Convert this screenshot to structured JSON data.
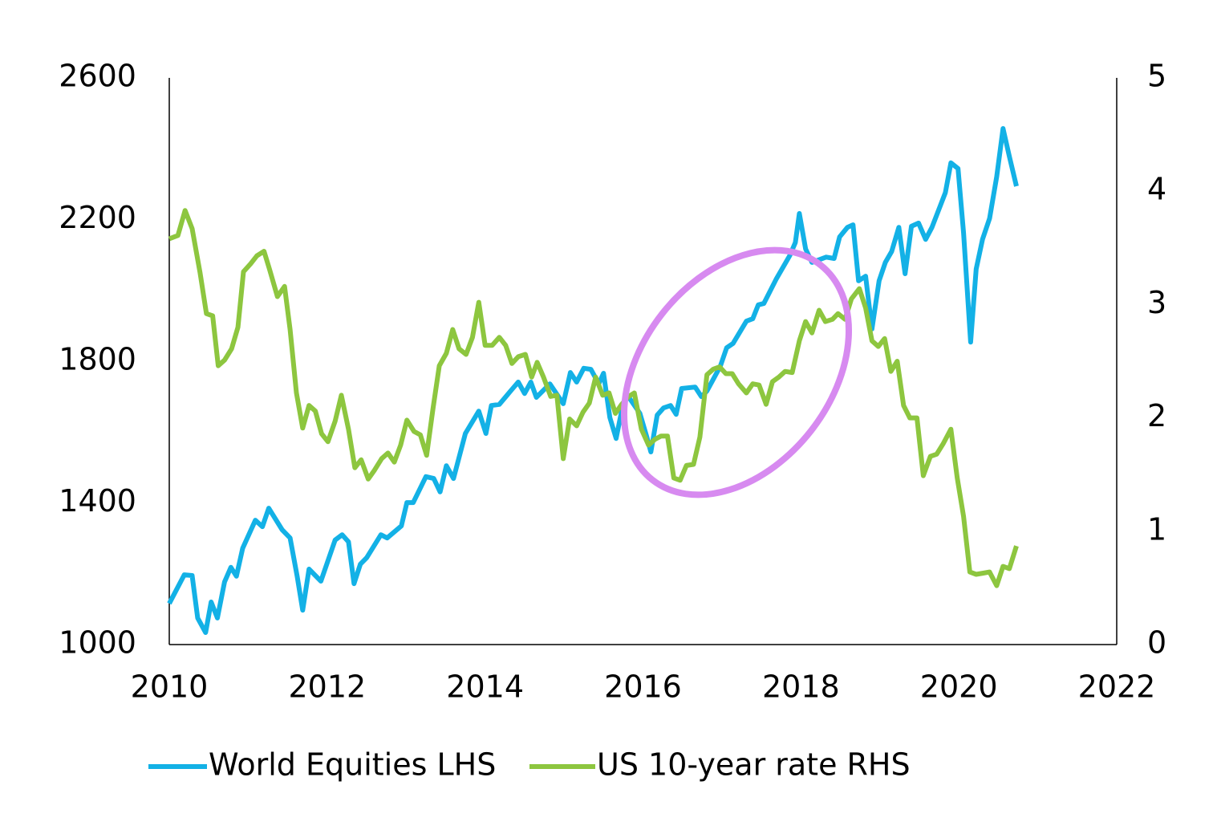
{
  "chart_data": {
    "type": "line",
    "xlim": [
      2010,
      2022
    ],
    "xticks": [
      2010,
      2012,
      2014,
      2016,
      2018,
      2020,
      2022
    ],
    "ylim": [
      1000,
      2600
    ],
    "yticks": [
      1000,
      1400,
      1800,
      2200,
      2600
    ],
    "y2lim": [
      0,
      5
    ],
    "y2ticks": [
      0,
      1,
      2,
      3,
      4,
      5
    ],
    "legend": "bottom",
    "series": [
      {
        "name": "World Equities LHS",
        "color": "#13b1e6",
        "x": [
          2010.0,
          2010.19,
          2010.29,
          2010.36,
          2010.46,
          2010.53,
          2010.61,
          2010.7,
          2010.78,
          2010.85,
          2010.93,
          2011.09,
          2011.18,
          2011.26,
          2011.43,
          2011.53,
          2011.62,
          2011.69,
          2011.77,
          2011.92,
          2012.1,
          2012.19,
          2012.27,
          2012.34,
          2012.42,
          2012.5,
          2012.68,
          2012.76,
          2012.94,
          2013.01,
          2013.09,
          2013.25,
          2013.35,
          2013.43,
          2013.51,
          2013.6,
          2013.75,
          2013.92,
          2014.01,
          2014.08,
          2014.18,
          2014.35,
          2014.42,
          2014.5,
          2014.58,
          2014.65,
          2014.82,
          2014.99,
          2015.08,
          2015.16,
          2015.25,
          2015.34,
          2015.44,
          2015.5,
          2015.58,
          2015.66,
          2015.74,
          2015.8,
          2015.96,
          2016.05,
          2016.1,
          2016.18,
          2016.26,
          2016.35,
          2016.42,
          2016.49,
          2016.66,
          2016.74,
          2016.81,
          2016.98,
          2017.06,
          2017.14,
          2017.31,
          2017.39,
          2017.46,
          2017.53,
          2017.69,
          2017.86,
          2017.93,
          2017.98,
          2018.06,
          2018.14,
          2018.32,
          2018.42,
          2018.49,
          2018.59,
          2018.66,
          2018.73,
          2018.82,
          2018.9,
          2018.99,
          2019.07,
          2019.15,
          2019.24,
          2019.32,
          2019.4,
          2019.49,
          2019.58,
          2019.66,
          2019.83,
          2019.9,
          2019.99,
          2020.06,
          2020.15,
          2020.22,
          2020.3,
          2020.39,
          2020.48,
          2020.56,
          2020.64,
          2020.73
        ],
        "values": [
          1116,
          1197,
          1195,
          1075,
          1034,
          1120,
          1075,
          1177,
          1218,
          1193,
          1272,
          1351,
          1333,
          1385,
          1324,
          1301,
          1193,
          1097,
          1213,
          1179,
          1295,
          1310,
          1290,
          1172,
          1227,
          1245,
          1310,
          1301,
          1335,
          1401,
          1401,
          1474,
          1469,
          1431,
          1505,
          1469,
          1596,
          1659,
          1596,
          1675,
          1678,
          1723,
          1741,
          1709,
          1741,
          1698,
          1736,
          1680,
          1768,
          1741,
          1780,
          1777,
          1736,
          1766,
          1641,
          1582,
          1671,
          1705,
          1653,
          1585,
          1544,
          1648,
          1668,
          1675,
          1650,
          1723,
          1727,
          1700,
          1716,
          1786,
          1838,
          1850,
          1913,
          1920,
          1959,
          1963,
          2033,
          2099,
          2135,
          2217,
          2117,
          2079,
          2094,
          2090,
          2151,
          2178,
          2185,
          2027,
          2040,
          1891,
          2027,
          2079,
          2110,
          2178,
          2047,
          2181,
          2190,
          2144,
          2178,
          2276,
          2360,
          2344,
          2162,
          1854,
          2060,
          2144,
          2203,
          2321,
          2457,
          2378,
          2294
        ]
      },
      {
        "name": "US 10-year rate RHS",
        "color": "#8dc63f",
        "axis": "y2",
        "x": [
          2010.0,
          2010.11,
          2010.2,
          2010.29,
          2010.39,
          2010.47,
          2010.55,
          2010.62,
          2010.7,
          2010.79,
          2010.87,
          2010.94,
          2011.03,
          2011.11,
          2011.2,
          2011.27,
          2011.37,
          2011.46,
          2011.53,
          2011.61,
          2011.69,
          2011.77,
          2011.85,
          2011.93,
          2012.01,
          2012.1,
          2012.18,
          2012.27,
          2012.35,
          2012.43,
          2012.52,
          2012.6,
          2012.69,
          2012.77,
          2012.85,
          2012.93,
          2013.01,
          2013.1,
          2013.18,
          2013.26,
          2013.34,
          2013.42,
          2013.51,
          2013.59,
          2013.67,
          2013.76,
          2013.84,
          2013.92,
          2014.0,
          2014.09,
          2014.18,
          2014.26,
          2014.34,
          2014.42,
          2014.51,
          2014.59,
          2014.66,
          2014.74,
          2014.83,
          2014.91,
          2014.99,
          2015.07,
          2015.16,
          2015.24,
          2015.32,
          2015.4,
          2015.49,
          2015.57,
          2015.65,
          2015.73,
          2015.82,
          2015.89,
          2015.98,
          2016.07,
          2016.15,
          2016.23,
          2016.31,
          2016.39,
          2016.47,
          2016.55,
          2016.64,
          2016.72,
          2016.81,
          2016.89,
          2016.97,
          2017.05,
          2017.13,
          2017.21,
          2017.31,
          2017.39,
          2017.47,
          2017.56,
          2017.64,
          2017.72,
          2017.8,
          2017.89,
          2017.98,
          2018.06,
          2018.14,
          2018.23,
          2018.31,
          2018.4,
          2018.47,
          2018.56,
          2018.64,
          2018.74,
          2018.82,
          2018.9,
          2018.98,
          2019.06,
          2019.14,
          2019.22,
          2019.3,
          2019.38,
          2019.47,
          2019.55,
          2019.64,
          2019.72,
          2019.8,
          2019.9,
          2019.98,
          2020.06,
          2020.14,
          2020.22,
          2020.31,
          2020.39,
          2020.48,
          2020.56,
          2020.64,
          2020.73
        ],
        "values": [
          3.58,
          3.61,
          3.83,
          3.67,
          3.28,
          2.92,
          2.9,
          2.46,
          2.51,
          2.61,
          2.8,
          3.29,
          3.36,
          3.43,
          3.47,
          3.31,
          3.07,
          3.16,
          2.78,
          2.22,
          1.91,
          2.11,
          2.06,
          1.86,
          1.79,
          1.97,
          2.2,
          1.9,
          1.56,
          1.63,
          1.46,
          1.54,
          1.64,
          1.69,
          1.61,
          1.76,
          1.98,
          1.88,
          1.85,
          1.67,
          2.08,
          2.46,
          2.57,
          2.78,
          2.61,
          2.56,
          2.71,
          3.02,
          2.64,
          2.64,
          2.71,
          2.64,
          2.48,
          2.54,
          2.56,
          2.36,
          2.49,
          2.36,
          2.19,
          2.2,
          1.64,
          1.99,
          1.93,
          2.05,
          2.13,
          2.36,
          2.2,
          2.22,
          2.04,
          2.12,
          2.19,
          2.22,
          1.9,
          1.76,
          1.81,
          1.84,
          1.84,
          1.47,
          1.45,
          1.58,
          1.59,
          1.83,
          2.38,
          2.43,
          2.45,
          2.39,
          2.39,
          2.3,
          2.22,
          2.3,
          2.29,
          2.12,
          2.32,
          2.36,
          2.41,
          2.4,
          2.68,
          2.85,
          2.75,
          2.95,
          2.85,
          2.87,
          2.92,
          2.87,
          3.05,
          3.14,
          2.97,
          2.68,
          2.63,
          2.7,
          2.41,
          2.5,
          2.11,
          2.0,
          2.0,
          1.49,
          1.66,
          1.68,
          1.77,
          1.9,
          1.47,
          1.13,
          0.64,
          0.62,
          0.63,
          0.64,
          0.52,
          0.69,
          0.67,
          0.87
        ]
      }
    ]
  }
}
